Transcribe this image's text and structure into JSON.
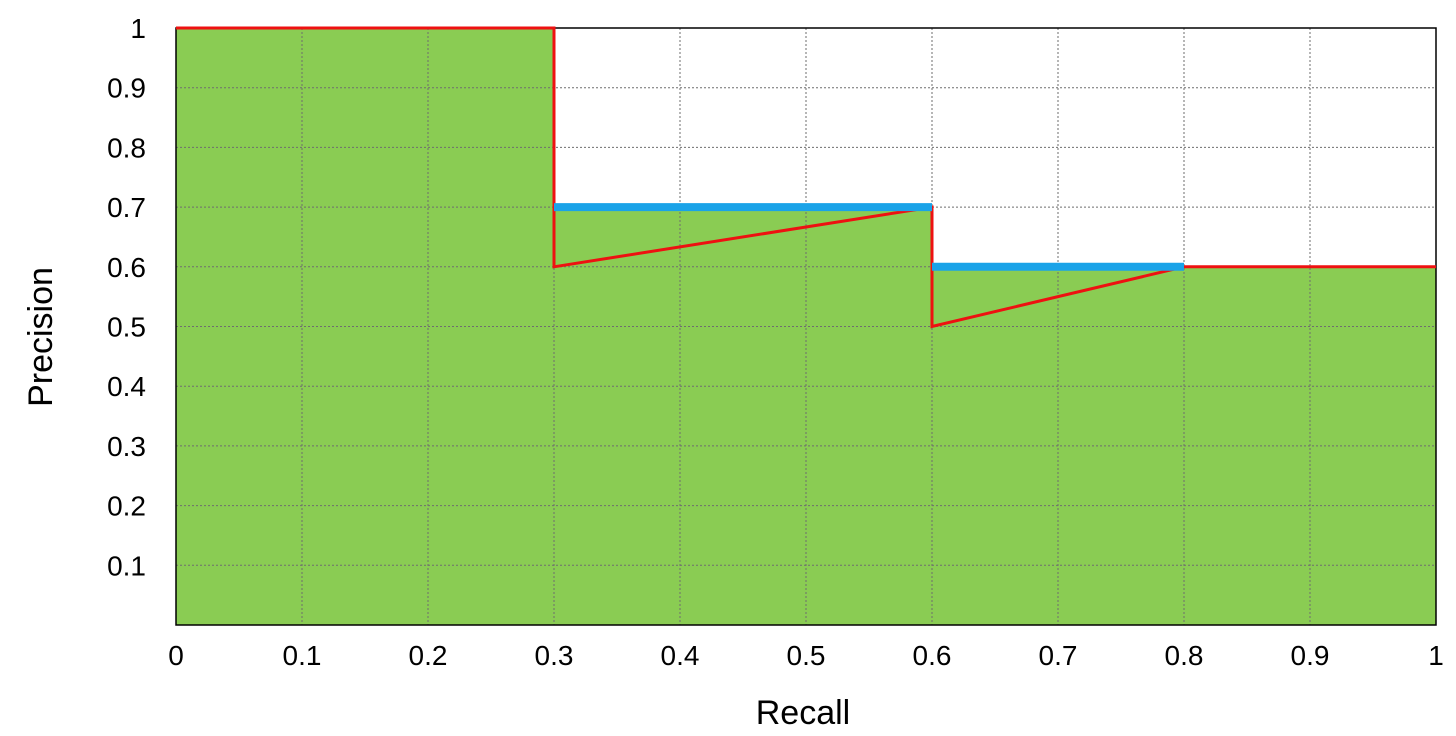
{
  "chart_data": {
    "type": "area",
    "title": "",
    "xlabel": "Recall",
    "ylabel": "Precision",
    "xlim": [
      0,
      1
    ],
    "ylim": [
      0,
      1
    ],
    "grid": true,
    "x_ticks": [
      "0",
      "0.1",
      "0.2",
      "0.3",
      "0.4",
      "0.5",
      "0.6",
      "0.7",
      "0.8",
      "0.9",
      "1"
    ],
    "y_ticks": [
      "0.1",
      "0.2",
      "0.3",
      "0.4",
      "0.5",
      "0.6",
      "0.7",
      "0.8",
      "0.9",
      "1"
    ],
    "series": [
      {
        "type": "area",
        "color": "#8ACC53",
        "x": [
          0,
          0.3,
          0.3,
          0.6,
          0.6,
          1.0
        ],
        "y": [
          1.0,
          1.0,
          0.7,
          0.7,
          0.6,
          0.6
        ]
      },
      {
        "type": "line",
        "color": "#EE1111",
        "x": [
          0,
          0.3,
          0.3,
          0.6,
          0.6,
          0.8,
          1.0
        ],
        "y": [
          1.0,
          1.0,
          0.6,
          0.7,
          0.5,
          0.6,
          0.6
        ]
      },
      {
        "type": "segments",
        "color": "#1AA3E8",
        "segments": [
          {
            "x": [
              0.3,
              0.6
            ],
            "y": 0.7
          },
          {
            "x": [
              0.6,
              0.8
            ],
            "y": 0.6
          }
        ]
      }
    ]
  }
}
